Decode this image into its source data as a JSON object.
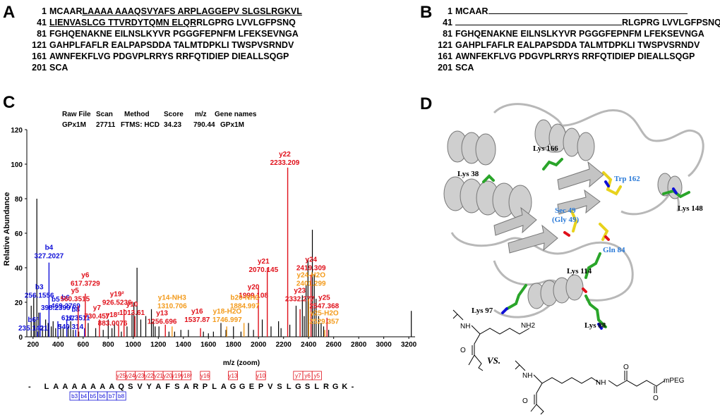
{
  "panels": {
    "A": "A",
    "B": "B",
    "C": "C",
    "D": "D"
  },
  "panelA": {
    "rows": [
      {
        "n": "1",
        "pre": "MCAAR",
        "ul": "LAAAA AAAQSVYAFS ARPLAGGEPV SLGSLRGKVL",
        "post": ""
      },
      {
        "n": "41",
        "pre": "",
        "ul": "LIENVASLCG TTVRDYTQMN ELQR",
        "post": "RLGPRG LVVLGFPSNQ"
      },
      {
        "n": "81",
        "pre": "FGHQENAKNE EILNSLKYVR PGGGFEPNFM LFEKSEVNGA",
        "ul": "",
        "post": ""
      },
      {
        "n": "121",
        "pre": "GAHPLFAFLR EALPAPSDDA TALMTDPKLI TWSPVSRNDV",
        "ul": "",
        "post": ""
      },
      {
        "n": "161",
        "pre": "AWNFEKFLVG PDGVPLRRYS RRFQTIDIEP DIEALLSQGP",
        "ul": "",
        "post": ""
      },
      {
        "n": "201",
        "pre": "SCA",
        "ul": "",
        "post": ""
      }
    ]
  },
  "panelB": {
    "rows": [
      {
        "n": "1",
        "pre": "MCAAR",
        "line": true,
        "post": ""
      },
      {
        "n": "41",
        "pre": "",
        "line": true,
        "post": "RLGPRG LVVLGFPSNQ"
      },
      {
        "n": "81",
        "pre": "FGHQENAKNE EILNSLKYVR PGGGFEPNFM LFEKSEVNGA",
        "line": false,
        "post": ""
      },
      {
        "n": "121",
        "pre": "GAHPLFAFLR EALPAPSDDA TALMTDPKLI TWSPVSRNDV",
        "line": false,
        "post": ""
      },
      {
        "n": "161",
        "pre": "AWNFEKFLVG PDGVPLRRYS RRFQTIDIEP DIEALLSQGP",
        "line": false,
        "post": ""
      },
      {
        "n": "201",
        "pre": "SCA",
        "line": false,
        "post": ""
      }
    ]
  },
  "meta": {
    "headers": [
      "Raw File",
      "Scan",
      "Method",
      "Score",
      "m/z",
      "Gene names"
    ],
    "values": [
      "GPx1M",
      "27711",
      "FTMS: HCD",
      "34.23",
      "790.44",
      "GPx1M"
    ]
  },
  "colors": {
    "red": "#e0101a",
    "blue": "#1010d8",
    "orange": "#f39a1a",
    "black": "#000000",
    "green": "#2aa52a",
    "yellow": "#e8d21c",
    "grey": "#b8b8b8"
  },
  "chart_data": {
    "type": "bar",
    "title": "",
    "xlabel": "m/z (zoom)",
    "ylabel": "Relative Abundance",
    "xlim": [
      150,
      3250
    ],
    "ylim": [
      0,
      120
    ],
    "xticks": [
      200,
      400,
      600,
      800,
      1000,
      1200,
      1400,
      1600,
      1800,
      2000,
      2200,
      2400,
      2600,
      2800,
      3000,
      3200
    ],
    "yticks": [
      0,
      20,
      40,
      60,
      80,
      100,
      120
    ],
    "background_peaks": [
      {
        "x": 185,
        "y": 18
      },
      {
        "x": 205,
        "y": 24
      },
      {
        "x": 215,
        "y": 10
      },
      {
        "x": 230,
        "y": 80
      },
      {
        "x": 245,
        "y": 14
      },
      {
        "x": 275,
        "y": 6
      },
      {
        "x": 300,
        "y": 10
      },
      {
        "x": 320,
        "y": 8
      },
      {
        "x": 345,
        "y": 6
      },
      {
        "x": 360,
        "y": 9
      },
      {
        "x": 380,
        "y": 5
      },
      {
        "x": 420,
        "y": 7
      },
      {
        "x": 440,
        "y": 5
      },
      {
        "x": 480,
        "y": 6
      },
      {
        "x": 500,
        "y": 9
      },
      {
        "x": 520,
        "y": 4
      },
      {
        "x": 565,
        "y": 3
      },
      {
        "x": 640,
        "y": 8
      },
      {
        "x": 700,
        "y": 5
      },
      {
        "x": 760,
        "y": 4
      },
      {
        "x": 800,
        "y": 10
      },
      {
        "x": 830,
        "y": 5
      },
      {
        "x": 850,
        "y": 8
      },
      {
        "x": 905,
        "y": 3
      },
      {
        "x": 950,
        "y": 6
      },
      {
        "x": 990,
        "y": 14
      },
      {
        "x": 1005,
        "y": 20
      },
      {
        "x": 1030,
        "y": 40
      },
      {
        "x": 1060,
        "y": 10
      },
      {
        "x": 1100,
        "y": 12
      },
      {
        "x": 1145,
        "y": 16
      },
      {
        "x": 1160,
        "y": 9
      },
      {
        "x": 1175,
        "y": 6
      },
      {
        "x": 1205,
        "y": 6
      },
      {
        "x": 1285,
        "y": 3
      },
      {
        "x": 1330,
        "y": 3
      },
      {
        "x": 1380,
        "y": 4
      },
      {
        "x": 1440,
        "y": 4
      },
      {
        "x": 1560,
        "y": 3
      },
      {
        "x": 1600,
        "y": 2
      },
      {
        "x": 1640,
        "y": 3
      },
      {
        "x": 1700,
        "y": 8
      },
      {
        "x": 1740,
        "y": 4
      },
      {
        "x": 1800,
        "y": 6
      },
      {
        "x": 1860,
        "y": 3
      },
      {
        "x": 1920,
        "y": 8
      },
      {
        "x": 1960,
        "y": 4
      },
      {
        "x": 2030,
        "y": 10
      },
      {
        "x": 2100,
        "y": 6
      },
      {
        "x": 2160,
        "y": 9
      },
      {
        "x": 2180,
        "y": 5
      },
      {
        "x": 2250,
        "y": 7
      },
      {
        "x": 2300,
        "y": 18
      },
      {
        "x": 2350,
        "y": 24
      },
      {
        "x": 2365,
        "y": 12
      },
      {
        "x": 2380,
        "y": 30
      },
      {
        "x": 2395,
        "y": 45
      },
      {
        "x": 2430,
        "y": 62
      },
      {
        "x": 2445,
        "y": 36
      },
      {
        "x": 2460,
        "y": 22
      },
      {
        "x": 2480,
        "y": 12
      },
      {
        "x": 2500,
        "y": 8
      },
      {
        "x": 2520,
        "y": 6
      },
      {
        "x": 2560,
        "y": 4
      },
      {
        "x": 3220,
        "y": 15
      }
    ],
    "peaks": [
      {
        "label": "b4",
        "value": "327.2027",
        "x": 327,
        "y": 43,
        "color": "blue",
        "lx": 327,
        "ly": 46
      },
      {
        "label": "b3",
        "value": "256.1556",
        "x": 256,
        "y": 14,
        "color": "blue",
        "lx": 250,
        "ly": 23
      },
      {
        "label": "b5",
        "value": "398.2399",
        "x": 398,
        "y": 9,
        "color": "blue",
        "lx": 380,
        "ly": 16
      },
      {
        "label": "b6",
        "value": "469.2769",
        "x": 469,
        "y": 10,
        "color": "blue",
        "lx": 460,
        "ly": 17
      },
      {
        "label": "b8",
        "value": "611.3511",
        "x": 611,
        "y": 5,
        "color": "blue",
        "lx": 540,
        "ly": 10
      },
      {
        "label": "b7",
        "value": "540.314",
        "x": 540,
        "y": 4,
        "color": "blue",
        "lx": 500,
        "ly": 5
      },
      {
        "label": "b6²",
        "value": "235.1421",
        "x": 235,
        "y": 3,
        "color": "blue",
        "lx": 200,
        "ly": 4
      },
      {
        "label": "y6",
        "value": "617.3729",
        "x": 617,
        "y": 25,
        "color": "red",
        "lx": 617,
        "ly": 30
      },
      {
        "label": "y5",
        "value": "560.3515",
        "x": 560,
        "y": 18,
        "color": "red",
        "lx": 535,
        "ly": 21
      },
      {
        "label": "y7",
        "value": "730.457",
        "x": 730,
        "y": 10,
        "color": "red",
        "lx": 710,
        "ly": 11
      },
      {
        "label": "y19²",
        "value": "926.5236",
        "x": 926,
        "y": 16,
        "color": "red",
        "lx": 870,
        "ly": 19
      },
      {
        "label": "y10",
        "value": "1013.61",
        "x": 1013,
        "y": 12,
        "color": "red",
        "lx": 990,
        "ly": 13
      },
      {
        "label": "y18²",
        "value": "883.0076",
        "x": 883,
        "y": 7,
        "color": "red",
        "lx": 835,
        "ly": 7
      },
      {
        "label": "y13",
        "value": "1256.696",
        "x": 1256,
        "y": 7,
        "color": "red",
        "lx": 1230,
        "ly": 8
      },
      {
        "label": "y16",
        "value": "1537.87",
        "x": 1537,
        "y": 5,
        "color": "red",
        "lx": 1510,
        "ly": 9
      },
      {
        "label": "y20",
        "value": "1999.108",
        "x": 1999,
        "y": 28,
        "color": "red",
        "lx": 1960,
        "ly": 23
      },
      {
        "label": "y21",
        "value": "2070.145",
        "x": 2070,
        "y": 40,
        "color": "red",
        "lx": 2040,
        "ly": 38
      },
      {
        "label": "y22",
        "value": "2233.209",
        "x": 2233,
        "y": 98,
        "color": "red",
        "lx": 2210,
        "ly": 100
      },
      {
        "label": "y23",
        "value": "2332.277",
        "x": 2332,
        "y": 16,
        "color": "red",
        "lx": 2330,
        "ly": 21
      },
      {
        "label": "y24",
        "value": "2419.309",
        "x": 2419,
        "y": 36,
        "color": "red",
        "lx": 2420,
        "ly": 39
      },
      {
        "label": "y25",
        "value": "2547.368",
        "x": 2547,
        "y": 11,
        "color": "red",
        "lx": 2525,
        "ly": 17
      },
      {
        "label": "y14-NH3",
        "value": "1310.706",
        "x": 1310,
        "y": 6,
        "color": "orange",
        "lx": 1310,
        "ly": 17
      },
      {
        "label": "y18-H2O",
        "value": "1746.997",
        "x": 1746,
        "y": 6,
        "color": "orange",
        "lx": 1750,
        "ly": 9
      },
      {
        "label": "b20-NH3",
        "value": "1884.997",
        "x": 1884,
        "y": 8,
        "color": "orange",
        "lx": 1890,
        "ly": 17
      },
      {
        "label": "y24-H2O",
        "value": "2401.299",
        "x": 2401,
        "y": 22,
        "color": "orange",
        "lx": 2420,
        "ly": 30
      },
      {
        "label": "y25-H2O",
        "value": "2529.357",
        "x": 2529,
        "y": 4,
        "color": "orange",
        "lx": 2525,
        "ly": 8
      }
    ]
  },
  "fragment_map": {
    "sequence": [
      "L",
      "A",
      "A",
      "A",
      "A",
      "A",
      "A",
      "A",
      "Q",
      "S",
      "V",
      "Y",
      "A",
      "F",
      "S",
      "A",
      "R",
      "P",
      "L",
      "A",
      "G",
      "G",
      "E",
      "P",
      "V",
      "S",
      "L",
      "G",
      "S",
      "L",
      "R",
      "G",
      "K"
    ],
    "y_ions": [
      "y25",
      "y24",
      "y23",
      "y22",
      "y21",
      "y20",
      "y19²",
      "y18²",
      "y16",
      "y13",
      "y10",
      "y7",
      "y6",
      "y5"
    ],
    "b_ions": [
      "b3",
      "b4",
      "b5",
      "b6",
      "b7",
      "b8"
    ],
    "dash": "-"
  },
  "structure": {
    "labels_black": [
      "Lys 166",
      "Lys 38",
      "Lys 148",
      "Lys 114",
      "Lys 97",
      "Lys 88"
    ],
    "labels_blue": [
      "Trp 162",
      "Sec 49",
      "(Gly 49)",
      "Gln 84"
    ],
    "vs": "VS.",
    "amine": "NH",
    "amine2": "NH2",
    "peg": "mPEG",
    "o1": "O",
    "o2": "O",
    "o3": "O"
  }
}
